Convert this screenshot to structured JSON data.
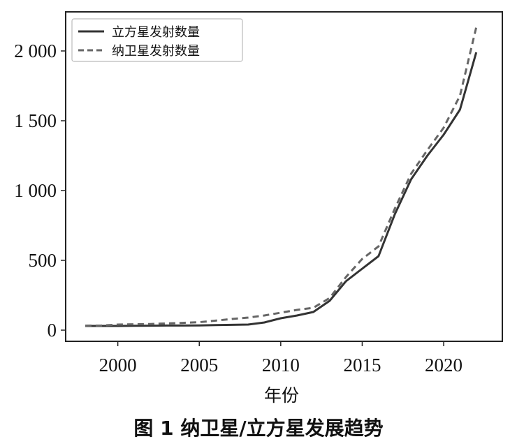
{
  "caption": "图 1   纳卫星/立方星发展趋势",
  "chart_data": {
    "type": "line",
    "title": "",
    "xlabel": "年份",
    "ylabel": "",
    "xlim": [
      1996.8,
      2023.6
    ],
    "ylim": [
      -80,
      2280
    ],
    "x_ticks": [
      2000,
      2005,
      2010,
      2015,
      2020
    ],
    "x_tick_labels": [
      "2000",
      "2005",
      "2010",
      "2015",
      "2020"
    ],
    "y_ticks": [
      0,
      500,
      1000,
      1500,
      2000
    ],
    "y_tick_labels": [
      "0",
      "500",
      "1 000",
      "1 500",
      "2 000"
    ],
    "grid": false,
    "legend_position": "top-left",
    "series": [
      {
        "name": "立方星发射数量",
        "style": "solid",
        "color": "#333333",
        "x": [
          1998,
          1999,
          2000,
          2001,
          2002,
          2003,
          2004,
          2005,
          2006,
          2007,
          2008,
          2009,
          2010,
          2011,
          2012,
          2013,
          2014,
          2015,
          2016,
          2017,
          2018,
          2019,
          2020,
          2021,
          2022
        ],
        "y": [
          30,
          30,
          30,
          31,
          32,
          33,
          33,
          34,
          36,
          38,
          40,
          55,
          85,
          105,
          130,
          210,
          350,
          440,
          530,
          830,
          1080,
          1250,
          1400,
          1580,
          1990
        ]
      },
      {
        "name": "纳卫星发射数量",
        "style": "dashed",
        "color": "#666666",
        "x": [
          1998,
          1999,
          2000,
          2001,
          2002,
          2003,
          2004,
          2005,
          2006,
          2007,
          2008,
          2009,
          2010,
          2011,
          2012,
          2013,
          2014,
          2015,
          2016,
          2017,
          2018,
          2019,
          2020,
          2021,
          2022
        ],
        "y": [
          32,
          33,
          40,
          42,
          44,
          48,
          52,
          57,
          68,
          80,
          90,
          105,
          125,
          145,
          160,
          230,
          380,
          510,
          600,
          870,
          1120,
          1290,
          1450,
          1680,
          2170
        ]
      }
    ]
  }
}
